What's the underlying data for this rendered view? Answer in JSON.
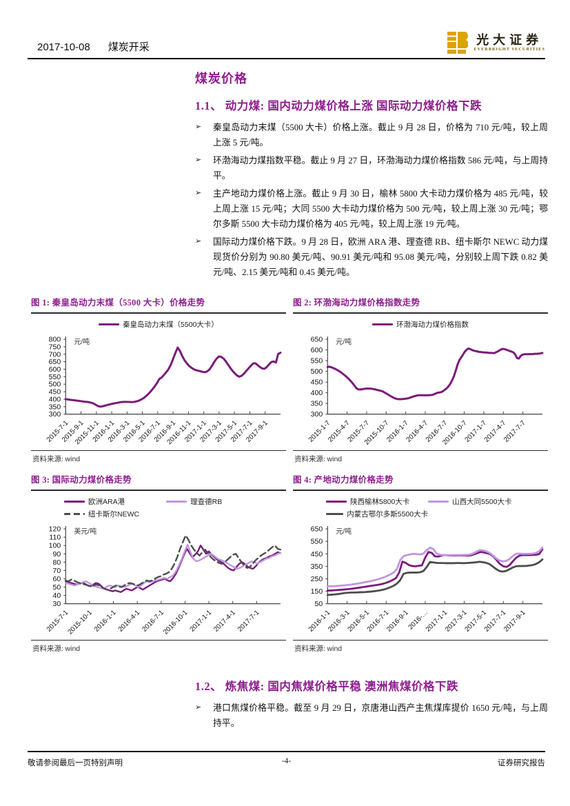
{
  "header": {
    "date": "2017-10-08",
    "category": "煤炭开采",
    "logo_cn": "光大证券",
    "logo_en": "EVERBRIGHT SECURITIES"
  },
  "page_title": "煤炭价格",
  "bullet_marker": "➢",
  "section_1_1": {
    "title": "1.1、 动力煤: 国内动力煤价格上涨  国际动力煤价格下跌",
    "bullets": [
      "秦皇岛动力末煤（5500 大卡）价格上涨。截止 9 月 28 日，价格为 710 元/吨，较上周上涨 5 元/吨。",
      "环渤海动力煤指数平稳。截止 9 月 27 日，环渤海动力煤价格指数 586 元/吨，与上周持平。",
      "主产地动力煤价格上涨。截止 9 月 30 日，榆林 5800 大卡动力煤价格为 485 元/吨，较上周上涨 15 元/吨；大同 5500 大卡动力煤价格为 500 元/吨，较上周上涨 30 元/吨；鄂尔多斯 5500 大卡动力煤价格为 405 元/吨，较上周上涨 19 元/吨。",
      "国际动力煤价格下跌。9 月 28 日，欧洲 ARA 港、理查德 RB、纽卡斯尔 NEWC 动力煤现货价分别为 90.80 美元/吨、90.91 美元/吨和 95.08 美元/吨，分别较上周下跌 0.82 美元/吨、2.15 美元/吨和 0.45 美元/吨。"
    ]
  },
  "section_1_2": {
    "title": "1.2、 炼焦煤: 国内焦煤价格平稳  澳洲焦煤价格下跌",
    "bullets": [
      "港口焦煤价格平稳。截至 9 月 29 日，京唐港山西产主焦煤库提价 1650 元/吨，与上周持平。"
    ]
  },
  "source_label": "资料来源: ",
  "source_value": "wind",
  "footer": {
    "left": "敬请参阅最后一页特别声明",
    "page": "-4-",
    "right": "证券研究报告"
  },
  "colors": {
    "accent_purple": "#8e1f8e",
    "line_dark_purple": "#7b1a7b",
    "line_light_purple": "#bf97e0",
    "line_gray": "#4d4d4d",
    "logo_gold": "#DDA300"
  },
  "chart_data": [
    {
      "type": "line",
      "title": "图 1: 秦皇岛动力末煤（5500 大卡）价格走势",
      "unit": "元/吨",
      "ylim": [
        300,
        800
      ],
      "ytick_step": 50,
      "legend_layout": "center",
      "x_labels": [
        "2015-7-1",
        "2015-9-1",
        "2015-11-1",
        "2016-1-1",
        "2016-3-1",
        "2016-5-1",
        "2016-7-1",
        "2016-9-1",
        "2016-11-1",
        "2017-1-1",
        "2017-3-1",
        "2017-5-1",
        "2017-7-1",
        "2017-9-1"
      ],
      "series": [
        {
          "name": "秦皇岛动力末煤（5500大卡）",
          "color": "#7b1a7b",
          "width": 3,
          "values": [
            400,
            398,
            396,
            394,
            392,
            390,
            388,
            386,
            384,
            382,
            380,
            377,
            372,
            364,
            355,
            350,
            352,
            356,
            360,
            364,
            368,
            371,
            374,
            377,
            380,
            381,
            382,
            382,
            381,
            380,
            382,
            385,
            390,
            397,
            406,
            418,
            432,
            448,
            466,
            486,
            508,
            535,
            545,
            562,
            580,
            600,
            630,
            668,
            708,
            745,
            722,
            688,
            660,
            640,
            622,
            610,
            600,
            594,
            590,
            586,
            582,
            580,
            586,
            600,
            622,
            648,
            670,
            685,
            683,
            672,
            654,
            632,
            610,
            590,
            572,
            558,
            550,
            556,
            570,
            588,
            605,
            622,
            638,
            640,
            628,
            615,
            605,
            603,
            615,
            632,
            648,
            652,
            645,
            702,
            710
          ]
        }
      ]
    },
    {
      "type": "line",
      "title": "图 2: 环渤海动力煤价格指数走势",
      "unit": "元/吨",
      "ylim": [
        300,
        650
      ],
      "ytick_step": 50,
      "legend_layout": "center",
      "x_labels": [
        "2015-1-7",
        "2015-4-7",
        "2015-7-7",
        "2015-10-7",
        "2016-1-7",
        "2016-4-7",
        "2016-7-7",
        "2016-10-7",
        "2017-1-7",
        "2017-4-7",
        "2017-7-7"
      ],
      "series": [
        {
          "name": "环渤海动力煤价格指数",
          "color": "#7b1a7b",
          "width": 3,
          "values": [
            520,
            522,
            519,
            516,
            512,
            508,
            503,
            498,
            492,
            485,
            478,
            470,
            462,
            453,
            443,
            432,
            421,
            416,
            415,
            416,
            418,
            419,
            420,
            420,
            419,
            418,
            416,
            414,
            412,
            410,
            408,
            404,
            399,
            394,
            389,
            384,
            379,
            375,
            372,
            370,
            370,
            370,
            371,
            372,
            373,
            375,
            378,
            381,
            384,
            386,
            388,
            388,
            388,
            388,
            388,
            388,
            388,
            389,
            390,
            393,
            397,
            400,
            401,
            403,
            408,
            414,
            421,
            430,
            442,
            458,
            478,
            504,
            532,
            552,
            565,
            578,
            592,
            601,
            607,
            604,
            600,
            597,
            595,
            593,
            591,
            590,
            589,
            588,
            588,
            587,
            586,
            586,
            585,
            588,
            592,
            597,
            602,
            605,
            604,
            601,
            598,
            595,
            592,
            588,
            578,
            562,
            560,
            572,
            578,
            580,
            580,
            580,
            581,
            580,
            581,
            582,
            582,
            583,
            584,
            586
          ]
        }
      ]
    },
    {
      "type": "line",
      "title": "图 3: 国际动力煤价格走势",
      "unit": "美元/吨",
      "ylim": [
        30,
        120
      ],
      "ytick_step": 10,
      "legend_layout": "two-col",
      "x_labels": [
        "2015-7-1",
        "2015-10-1",
        "2016-1-1",
        "2016-4-1",
        "2016-7-1",
        "2016-10-1",
        "2017-1-1",
        "2017-4-1",
        "2017-7-1"
      ],
      "series": [
        {
          "name": "欧洲ARA港",
          "color": "#7b1a7b",
          "width": 2.4,
          "values": [
            57,
            56,
            55,
            54,
            53,
            54,
            55,
            54,
            52,
            51,
            53,
            55,
            54,
            51,
            48,
            47,
            46,
            45,
            46,
            45,
            44,
            46,
            48,
            47,
            46,
            48,
            50,
            49,
            47,
            49,
            51,
            53,
            55,
            57,
            58,
            59,
            60,
            58,
            57,
            61,
            66,
            73,
            81,
            89,
            96,
            91,
            86,
            89,
            93,
            100,
            95,
            90,
            93,
            89,
            86,
            83,
            81,
            79,
            76,
            73,
            71,
            70,
            74,
            78,
            80,
            78,
            75,
            73,
            72,
            75,
            79,
            82,
            84,
            85,
            87,
            88,
            90,
            92,
            90.8
          ]
        },
        {
          "name": "理查德RB",
          "color": "#bf97e0",
          "width": 2.4,
          "values": [
            55,
            54,
            53,
            52,
            53,
            54,
            56,
            57,
            55,
            53,
            51,
            50,
            49,
            48,
            50,
            52,
            51,
            50,
            52,
            51,
            50,
            51,
            53,
            54,
            52,
            50,
            52,
            55,
            57,
            56,
            57,
            58,
            59,
            60,
            61,
            60,
            62,
            64,
            69,
            76,
            84,
            93,
            101,
            92,
            84,
            81,
            82,
            84,
            86,
            88,
            90,
            88,
            85,
            83,
            82,
            80,
            78,
            76,
            74,
            72,
            73,
            75,
            77,
            79,
            81,
            80,
            78,
            80,
            82,
            84,
            85,
            87,
            88,
            90,
            90.9
          ]
        },
        {
          "name": "纽卡斯尔NEWC",
          "color": "#4d4d4d",
          "width": 2.4,
          "dash": true,
          "values": [
            58,
            57,
            59,
            58,
            56,
            55,
            54,
            53,
            52,
            51,
            52,
            53,
            52,
            50,
            48,
            47,
            48,
            50,
            52,
            51,
            50,
            52,
            54,
            55,
            54,
            53,
            52,
            54,
            56,
            58,
            57,
            58,
            60,
            62,
            63,
            65,
            66,
            68,
            72,
            78,
            86,
            96,
            104,
            112,
            107,
            100,
            95,
            91,
            88,
            92,
            95,
            91,
            86,
            83,
            81,
            79,
            78,
            80,
            83,
            86,
            89,
            90,
            85,
            80,
            76,
            73,
            74,
            78,
            82,
            85,
            88,
            90,
            92,
            95,
            98,
            100,
            96,
            95.1
          ]
        }
      ]
    },
    {
      "type": "line",
      "title": "图 4: 产地动力煤价格走势",
      "unit": "元/吨",
      "ylim": [
        50,
        650
      ],
      "ytick_step": 100,
      "legend_layout": "two-col",
      "x_labels": [
        "2016-1-1",
        "2016-3-1",
        "2016-5-1",
        "2016-7-1",
        "2016-9-1",
        "2016-…",
        "2017-1-1",
        "2017-3-1",
        "2017-5-1",
        "2017-7-1",
        "2017-9-1"
      ],
      "series": [
        {
          "name": "陕西榆林5800大卡",
          "color": "#7b1a7b",
          "width": 2.8,
          "values": [
            155,
            156,
            158,
            160,
            162,
            164,
            166,
            169,
            172,
            176,
            180,
            184,
            188,
            192,
            196,
            200,
            204,
            210,
            218,
            228,
            240,
            255,
            300,
            388,
            378,
            360,
            352,
            350,
            354,
            358,
            420,
            465,
            458,
            430,
            428,
            436,
            440,
            438,
            437,
            436,
            437,
            438,
            437,
            436,
            438,
            446,
            456,
            465,
            461,
            455,
            446,
            428,
            398,
            368,
            350,
            345,
            362,
            392,
            420,
            436,
            440,
            440,
            440,
            441,
            443,
            448,
            485
          ]
        },
        {
          "name": "山西大同5500大卡",
          "color": "#bf97e0",
          "width": 2.8,
          "values": [
            190,
            190,
            191,
            193,
            195,
            197,
            200,
            203,
            207,
            211,
            216,
            221,
            226,
            231,
            237,
            244,
            252,
            261,
            272,
            285,
            300,
            330,
            400,
            432,
            440,
            446,
            450,
            447,
            445,
            452,
            480,
            500,
            488,
            452,
            443,
            440,
            440,
            439,
            440,
            440,
            440,
            441,
            442,
            444,
            452,
            466,
            480,
            477,
            470,
            458,
            438,
            414,
            396,
            390,
            393,
            408,
            432,
            450,
            452,
            450,
            450,
            450,
            452,
            456,
            470,
            500
          ]
        },
        {
          "name": "内蒙古鄂尔多斯5500大卡",
          "color": "#4d4d4d",
          "width": 2.8,
          "values": [
            120,
            122,
            124,
            127,
            131,
            135,
            138,
            140,
            140,
            141,
            142,
            143,
            145,
            147,
            150,
            154,
            158,
            164,
            172,
            182,
            195,
            212,
            240,
            290,
            298,
            300,
            300,
            300,
            302,
            312,
            345,
            385,
            381,
            377,
            376,
            376,
            375,
            375,
            375,
            376,
            376,
            375,
            376,
            378,
            380,
            383,
            386,
            383,
            378,
            368,
            348,
            328,
            312,
            308,
            313,
            326,
            340,
            350,
            352,
            352,
            353,
            356,
            360,
            368,
            382,
            405
          ]
        }
      ]
    }
  ]
}
